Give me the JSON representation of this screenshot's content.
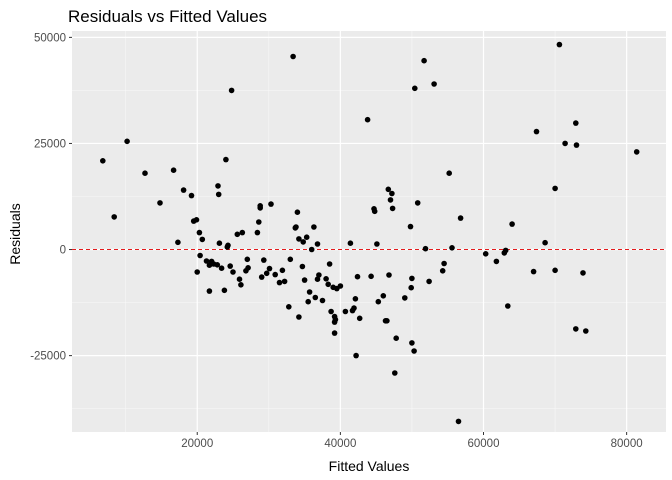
{
  "chart_data": {
    "type": "scatter",
    "title": "Residuals vs Fitted Values",
    "xlabel": "Fitted Values",
    "ylabel": "Residuals",
    "xlim": [
      2500,
      85500
    ],
    "ylim": [
      -43000,
      51500
    ],
    "x_ticks": [
      20000,
      40000,
      60000,
      80000
    ],
    "x_tick_labels": [
      "20000",
      "40000",
      "60000",
      "80000"
    ],
    "y_ticks": [
      50000,
      25000,
      0,
      -25000
    ],
    "y_tick_labels": [
      "50000",
      "25000",
      "0",
      "-25000"
    ],
    "grid": true,
    "reference_line": {
      "y": 0,
      "style": "dashed",
      "color": "#e41a1c"
    },
    "point_color": "#000000",
    "panel_color": "#ebebeb",
    "series": [
      {
        "points": [
          [
            6800,
            20900
          ],
          [
            8400,
            7700
          ],
          [
            10200,
            25500
          ],
          [
            12700,
            18000
          ],
          [
            14800,
            11000
          ],
          [
            16700,
            18700
          ],
          [
            17300,
            1700
          ],
          [
            18100,
            14000
          ],
          [
            19200,
            12700
          ],
          [
            19500,
            6700
          ],
          [
            19900,
            7000
          ],
          [
            20000,
            -5300
          ],
          [
            20300,
            4000
          ],
          [
            20400,
            -1400
          ],
          [
            20700,
            2400
          ],
          [
            21300,
            -2700
          ],
          [
            21700,
            -3700
          ],
          [
            21700,
            -9800
          ],
          [
            22000,
            -2800
          ],
          [
            22300,
            -3400
          ],
          [
            22800,
            -3600
          ],
          [
            22900,
            15000
          ],
          [
            23000,
            13000
          ],
          [
            23100,
            1500
          ],
          [
            23400,
            -4400
          ],
          [
            23800,
            -9600
          ],
          [
            24000,
            21200
          ],
          [
            24200,
            600
          ],
          [
            24300,
            1000
          ],
          [
            24600,
            -3900
          ],
          [
            24800,
            37500
          ],
          [
            25000,
            -5300
          ],
          [
            25600,
            3600
          ],
          [
            25900,
            -7000
          ],
          [
            26100,
            -8300
          ],
          [
            26300,
            4000
          ],
          [
            26800,
            -5000
          ],
          [
            27000,
            -2300
          ],
          [
            27100,
            -4300
          ],
          [
            28400,
            4000
          ],
          [
            28600,
            6500
          ],
          [
            28800,
            10300
          ],
          [
            28800,
            9800
          ],
          [
            29000,
            -6500
          ],
          [
            29300,
            -2500
          ],
          [
            29700,
            -5600
          ],
          [
            30100,
            -4500
          ],
          [
            30300,
            10700
          ],
          [
            30900,
            -5900
          ],
          [
            31500,
            -7800
          ],
          [
            31900,
            -4900
          ],
          [
            32200,
            -7500
          ],
          [
            32800,
            -13500
          ],
          [
            33000,
            -2300
          ],
          [
            33400,
            45500
          ],
          [
            33700,
            5100
          ],
          [
            33800,
            5300
          ],
          [
            34000,
            8800
          ],
          [
            34200,
            2500
          ],
          [
            34200,
            -15900
          ],
          [
            34700,
            -4000
          ],
          [
            34800,
            1800
          ],
          [
            35000,
            -7200
          ],
          [
            35300,
            2900
          ],
          [
            35500,
            -12300
          ],
          [
            35700,
            -10000
          ],
          [
            36000,
            0
          ],
          [
            36300,
            5300
          ],
          [
            36500,
            -11300
          ],
          [
            36800,
            1300
          ],
          [
            36800,
            -7000
          ],
          [
            37000,
            -6000
          ],
          [
            37500,
            -12000
          ],
          [
            38000,
            -6900
          ],
          [
            38300,
            -8200
          ],
          [
            38500,
            -3400
          ],
          [
            38700,
            -14600
          ],
          [
            39000,
            -8900
          ],
          [
            39200,
            -15800
          ],
          [
            39200,
            -17100
          ],
          [
            39200,
            -19700
          ],
          [
            39300,
            -16500
          ],
          [
            39500,
            -9200
          ],
          [
            40000,
            -8600
          ],
          [
            40700,
            -14600
          ],
          [
            41400,
            1500
          ],
          [
            41700,
            -14400
          ],
          [
            41900,
            -13800
          ],
          [
            42100,
            -11600
          ],
          [
            42200,
            -25000
          ],
          [
            42400,
            -6400
          ],
          [
            42700,
            -16200
          ],
          [
            43800,
            30600
          ],
          [
            44300,
            -6300
          ],
          [
            44700,
            9600
          ],
          [
            44800,
            9000
          ],
          [
            45100,
            1300
          ],
          [
            45300,
            -12300
          ],
          [
            46000,
            -10900
          ],
          [
            46300,
            -16800
          ],
          [
            46500,
            -16800
          ],
          [
            46700,
            14200
          ],
          [
            46800,
            -6000
          ],
          [
            47000,
            11700
          ],
          [
            47200,
            13200
          ],
          [
            47300,
            9700
          ],
          [
            47600,
            -29100
          ],
          [
            47800,
            -20900
          ],
          [
            49000,
            -11400
          ],
          [
            49800,
            5400
          ],
          [
            49900,
            -9000
          ],
          [
            50000,
            -6800
          ],
          [
            50000,
            -22000
          ],
          [
            50300,
            -23900
          ],
          [
            50400,
            38000
          ],
          [
            50800,
            11000
          ],
          [
            51700,
            44500
          ],
          [
            51900,
            200
          ],
          [
            52400,
            -7500
          ],
          [
            53100,
            39000
          ],
          [
            54300,
            -5000
          ],
          [
            54500,
            -3300
          ],
          [
            55200,
            18000
          ],
          [
            55600,
            400
          ],
          [
            56500,
            -40500
          ],
          [
            56800,
            7400
          ],
          [
            60300,
            -1000
          ],
          [
            61800,
            -2800
          ],
          [
            62900,
            -800
          ],
          [
            63100,
            -200
          ],
          [
            63400,
            -13300
          ],
          [
            64000,
            6000
          ],
          [
            67000,
            -5200
          ],
          [
            67400,
            27800
          ],
          [
            68600,
            1600
          ],
          [
            70000,
            -4900
          ],
          [
            70000,
            14400
          ],
          [
            70600,
            48300
          ],
          [
            71400,
            25000
          ],
          [
            72900,
            -18700
          ],
          [
            72900,
            29800
          ],
          [
            73000,
            24600
          ],
          [
            73900,
            -5500
          ],
          [
            74300,
            -19200
          ],
          [
            81400,
            23000
          ]
        ]
      }
    ]
  }
}
